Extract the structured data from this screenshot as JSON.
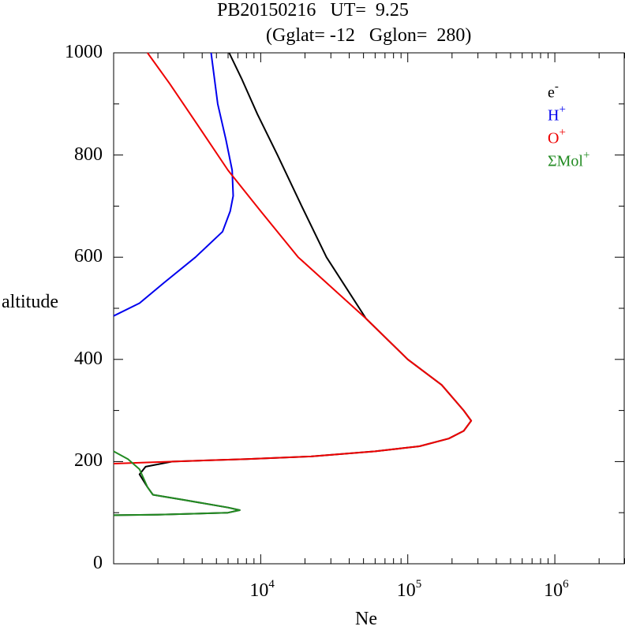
{
  "chart_data": {
    "type": "line",
    "title": "PB20150216   UT=  9.25",
    "subtitle": "(Gglat= -12   Gglon=  280)",
    "xlabel": "Ne",
    "ylabel": "altitude",
    "xscale": "log",
    "xlim": [
      1000,
      3000000
    ],
    "ylim": [
      0,
      1000
    ],
    "yticks": [
      "0",
      "200",
      "400",
      "600",
      "800",
      "1000"
    ],
    "xticks": [
      {
        "base": "10",
        "exp": "4",
        "value": 10000
      },
      {
        "base": "10",
        "exp": "5",
        "value": 100000
      },
      {
        "base": "10",
        "exp": "6",
        "value": 1000000
      }
    ],
    "legend_position": "top-right",
    "series": [
      {
        "name": "e",
        "sup": "-",
        "color": "#000000",
        "points": [
          [
            6100,
            1000
          ],
          [
            7400,
            950
          ],
          [
            9500,
            880
          ],
          [
            13000,
            800
          ],
          [
            19000,
            700
          ],
          [
            28000,
            600
          ],
          [
            52000,
            480
          ],
          [
            100000,
            400
          ],
          [
            170000,
            350
          ],
          [
            240000,
            300
          ],
          [
            270000,
            280
          ],
          [
            240000,
            260
          ],
          [
            190000,
            245
          ],
          [
            120000,
            230
          ],
          [
            60000,
            220
          ],
          [
            22000,
            210
          ],
          [
            8000,
            205
          ],
          [
            2500,
            200
          ],
          [
            1650,
            190
          ],
          [
            1500,
            175
          ],
          [
            1700,
            150
          ],
          [
            1850,
            135
          ],
          [
            3000,
            125
          ],
          [
            6000,
            110
          ],
          [
            7200,
            105
          ],
          [
            6000,
            100
          ],
          [
            2000,
            96
          ],
          [
            1000,
            95
          ]
        ]
      },
      {
        "name": "H",
        "sup": "+",
        "color": "#0000ee",
        "points": [
          [
            4600,
            1000
          ],
          [
            5100,
            900
          ],
          [
            5800,
            830
          ],
          [
            6400,
            770
          ],
          [
            6500,
            720
          ],
          [
            6200,
            690
          ],
          [
            5500,
            650
          ],
          [
            3600,
            600
          ],
          [
            2200,
            550
          ],
          [
            1500,
            510
          ],
          [
            1000,
            485
          ]
        ]
      },
      {
        "name": "O",
        "sup": "+",
        "color": "#ee0000",
        "points": [
          [
            1700,
            1000
          ],
          [
            2400,
            940
          ],
          [
            3700,
            860
          ],
          [
            6000,
            770
          ],
          [
            10000,
            690
          ],
          [
            18000,
            600
          ],
          [
            52000,
            480
          ],
          [
            100000,
            400
          ],
          [
            170000,
            350
          ],
          [
            240000,
            300
          ],
          [
            270000,
            280
          ],
          [
            240000,
            260
          ],
          [
            190000,
            245
          ],
          [
            120000,
            230
          ],
          [
            60000,
            220
          ],
          [
            22000,
            210
          ],
          [
            8000,
            205
          ],
          [
            2500,
            200
          ],
          [
            1000,
            196
          ]
        ]
      },
      {
        "name": "ΣMol",
        "sup": "+",
        "color": "#228b22",
        "points": [
          [
            1000,
            220
          ],
          [
            1250,
            205
          ],
          [
            1500,
            185
          ],
          [
            1700,
            150
          ],
          [
            1850,
            135
          ],
          [
            3000,
            125
          ],
          [
            6000,
            110
          ],
          [
            7200,
            105
          ],
          [
            6000,
            100
          ],
          [
            2000,
            96
          ],
          [
            1000,
            95
          ]
        ]
      }
    ]
  }
}
